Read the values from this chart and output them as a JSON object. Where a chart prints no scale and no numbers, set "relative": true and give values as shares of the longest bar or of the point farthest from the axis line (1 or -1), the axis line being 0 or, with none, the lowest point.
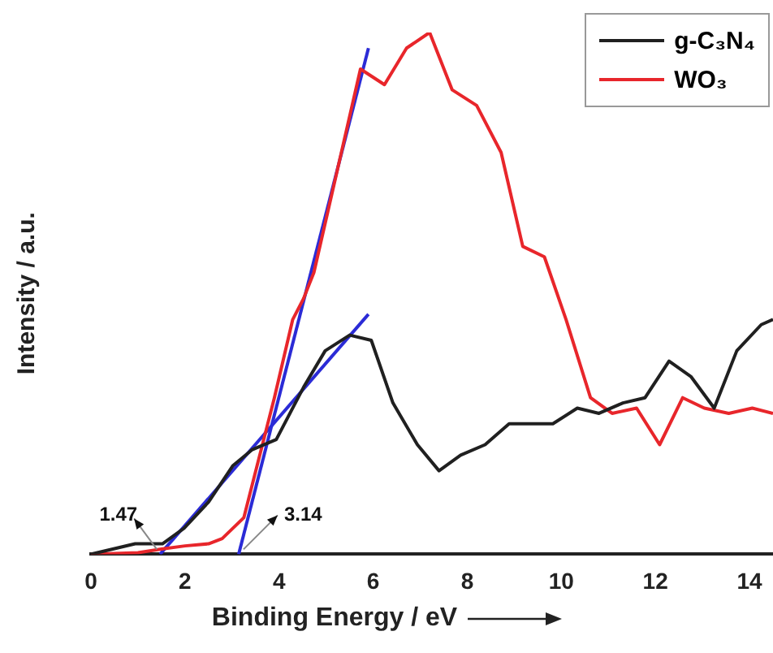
{
  "chart_data": {
    "type": "line",
    "relative": true,
    "xlabel": "Binding Energy / eV",
    "ylabel": "Intensity / a.u.",
    "xlim": [
      0,
      14.5
    ],
    "xticks": [
      0,
      2,
      4,
      6,
      8,
      10,
      12,
      14
    ],
    "legend": "top right",
    "grid": false,
    "marker": "none",
    "series": [
      {
        "name": "g-C₃N₄",
        "color": "#202020",
        "x": [
          0,
          0.94,
          1.52,
          1.98,
          2.5,
          3.02,
          3.42,
          3.94,
          4.52,
          4.98,
          5.5,
          5.96,
          6.42,
          6.94,
          7.4,
          7.86,
          8.38,
          8.89,
          9.36,
          9.82,
          10.34,
          10.8,
          11.31,
          11.78,
          12.29,
          12.76,
          13.25,
          13.73,
          14.25,
          14.5
        ],
        "values": [
          0,
          0.02,
          0.02,
          0.05,
          0.1,
          0.17,
          0.2,
          0.22,
          0.32,
          0.39,
          0.42,
          0.41,
          0.29,
          0.21,
          0.16,
          0.19,
          0.21,
          0.25,
          0.25,
          0.25,
          0.28,
          0.27,
          0.29,
          0.3,
          0.37,
          0.34,
          0.28,
          0.39,
          0.44,
          0.45
        ]
      },
      {
        "name": "WO₃",
        "color": "#e8262b",
        "x": [
          0,
          1,
          1.5,
          2,
          2.5,
          2.79,
          3.25,
          3.9,
          4.29,
          4.52,
          4.74,
          5.73,
          6.24,
          6.71,
          7.2,
          7.68,
          8.2,
          8.72,
          9.18,
          9.64,
          10.1,
          10.62,
          11.08,
          11.6,
          12.09,
          12.58,
          13.04,
          13.56,
          14.06,
          14.5
        ],
        "values": [
          0,
          0.003,
          0.01,
          0.016,
          0.02,
          0.03,
          0.07,
          0.3,
          0.45,
          0.49,
          0.54,
          0.93,
          0.9,
          0.97,
          1,
          0.89,
          0.86,
          0.77,
          0.59,
          0.57,
          0.45,
          0.3,
          0.27,
          0.28,
          0.21,
          0.3,
          0.28,
          0.27,
          0.28,
          0.27
        ]
      },
      {
        "color": "#2b2bd6",
        "x": [
          3.14,
          5.9
        ],
        "values": [
          0,
          0.97
        ]
      },
      {
        "color": "#2b2bd6",
        "x": [
          1.47,
          5.9
        ],
        "values": [
          0,
          0.46
        ]
      }
    ],
    "annotations": [
      {
        "text": "1.47",
        "x": 1.47,
        "y": 0
      },
      {
        "text": "3.14",
        "x": 3.14,
        "y": 0
      }
    ]
  }
}
